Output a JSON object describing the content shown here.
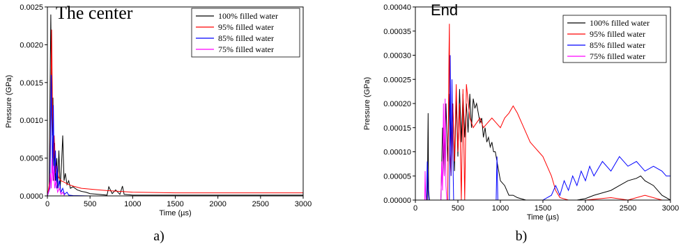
{
  "chart_data": [
    {
      "type": "line",
      "title": "The center",
      "caption": "a)",
      "xlabel": "Time (µs)",
      "ylabel": "Pressure (GPa)",
      "xlim": [
        0,
        3000
      ],
      "ylim": [
        0,
        0.0025
      ],
      "xticks": [
        "0",
        "500",
        "1000",
        "1500",
        "2000",
        "2500",
        "3000"
      ],
      "yticks": [
        "0.0000",
        "0.0005",
        "0.0010",
        "0.0015",
        "0.0020",
        "0.0025"
      ],
      "legend_position": "top-right",
      "series": [
        {
          "name": "100% filled water",
          "color": "#000000",
          "x": [
            0,
            20,
            40,
            55,
            65,
            75,
            85,
            95,
            110,
            120,
            135,
            150,
            165,
            180,
            195,
            210,
            230,
            250,
            270,
            300,
            350,
            400,
            450,
            500,
            600,
            700,
            720,
            760,
            800,
            850,
            880,
            900,
            1000,
            1500,
            2000,
            2500,
            3000
          ],
          "y": [
            0,
            0.0001,
            0.0024,
            0.0008,
            0.0013,
            0.0002,
            0.0007,
            0.0002,
            0.0005,
            0.0001,
            0.0006,
            0.0001,
            0.0004,
            0.0008,
            0.0002,
            0.0003,
            0.00015,
            0.0002,
            0.0001,
            0.00012,
            8e-05,
            6e-05,
            5e-05,
            3e-05,
            2e-05,
            1e-05,
            0.00012,
            3e-05,
            8e-05,
            2e-05,
            0.00013,
            2e-05,
            1e-05,
            1e-05,
            1e-05,
            1e-05,
            1e-05
          ]
        },
        {
          "name": "95% filled water",
          "color": "#ff0000",
          "x": [
            0,
            30,
            50,
            60,
            70,
            80,
            95,
            110,
            130,
            160,
            200,
            250,
            300,
            400,
            500,
            700,
            1000,
            1500,
            2000,
            2500,
            3000
          ],
          "y": [
            0,
            0.0002,
            0.0022,
            0.0012,
            0.0005,
            0.0008,
            0.0003,
            0.0004,
            0.00025,
            0.0002,
            0.00018,
            0.00015,
            0.00013,
            0.0001,
            9e-05,
            7e-05,
            5e-05,
            4e-05,
            4e-05,
            4e-05,
            4e-05
          ]
        },
        {
          "name": "85% filled water",
          "color": "#0000ff",
          "x": [
            0,
            30,
            45,
            60,
            70,
            80,
            95,
            105,
            115,
            125,
            140,
            160,
            180,
            200,
            230,
            250,
            300,
            400,
            500,
            1000,
            1500,
            2000,
            2500,
            3000
          ],
          "y": [
            0,
            0.0001,
            0.0016,
            0.0003,
            0.0012,
            0.0002,
            0.0006,
            0.0001,
            0.0004,
            0.0001,
            0.0002,
            5e-05,
            0.0001,
            2e-05,
            5e-05,
            1e-05,
            5e-06,
            3e-06,
            0,
            0,
            0,
            0,
            0,
            0
          ]
        },
        {
          "name": "75% filled water",
          "color": "#ff00ff",
          "x": [
            0,
            25,
            35,
            45,
            55,
            65,
            75,
            85,
            100,
            120,
            140,
            160,
            180,
            200,
            300,
            500,
            1000,
            2000,
            3000
          ],
          "y": [
            0,
            0.0001,
            0.0003,
            0.0001,
            0.0005,
            0.0002,
            0.0004,
            0.0001,
            0.0002,
            5e-05,
            0.0001,
            2e-05,
            5e-05,
            0,
            0,
            0,
            0,
            0,
            0
          ]
        }
      ]
    },
    {
      "type": "line",
      "title": "End",
      "caption": "b)",
      "xlabel": "Time (µs)",
      "ylabel": "Pressure (GPa)",
      "xlim": [
        0,
        3000
      ],
      "ylim": [
        0,
        0.0004
      ],
      "xticks": [
        "0",
        "500",
        "1000",
        "1500",
        "2000",
        "2500",
        "3000"
      ],
      "yticks": [
        "0.00000",
        "0.00005",
        "0.00010",
        "0.00015",
        "0.00020",
        "0.00025",
        "0.00030",
        "0.00035",
        "0.00040"
      ],
      "legend_position": "top-right",
      "series": [
        {
          "name": "100% filled water",
          "color": "#000000",
          "x": [
            0,
            140,
            150,
            155,
            165,
            300,
            320,
            340,
            360,
            380,
            400,
            420,
            440,
            460,
            480,
            500,
            520,
            540,
            560,
            580,
            600,
            620,
            640,
            660,
            680,
            700,
            720,
            740,
            760,
            780,
            800,
            820,
            840,
            860,
            880,
            900,
            920,
            940,
            960,
            980,
            1000,
            1050,
            1100,
            1150,
            1200,
            1300,
            1400,
            1500,
            1600,
            1700,
            1800,
            1900,
            2000,
            2100,
            2200,
            2300,
            2400,
            2500,
            2600,
            2650,
            2700,
            2800,
            2900,
            3000
          ],
          "y": [
            0,
            0,
            0.00018,
            2e-05,
            0,
            0,
            0.00015,
            5e-05,
            0.0002,
            8e-05,
            0.00022,
            0.0001,
            0.0002,
            6e-05,
            0.00021,
            9e-05,
            0.00023,
            0.00012,
            0.00022,
            0.00013,
            0.0002,
            0.00014,
            0.00022,
            0.00015,
            0.00021,
            0.00019,
            0.0002,
            0.00018,
            0.00016,
            0.00017,
            0.00013,
            0.00015,
            0.00012,
            0.00013,
            0.00011,
            0.00012,
            0.0001,
            0.0001,
            8e-05,
            6e-05,
            4e-05,
            3e-05,
            1e-05,
            1e-05,
            5e-06,
            0,
            0,
            0,
            0,
            0,
            0,
            0,
            3e-06,
            1e-05,
            1.5e-05,
            2e-05,
            3e-05,
            4e-05,
            4.5e-05,
            5e-05,
            4e-05,
            3e-05,
            1e-05,
            0
          ]
        },
        {
          "name": "95% filled water",
          "color": "#ff0000",
          "x": [
            0,
            380,
            390,
            395,
            400,
            405,
            420,
            440,
            460,
            480,
            500,
            520,
            540,
            560,
            580,
            600,
            640,
            680,
            720,
            760,
            800,
            850,
            900,
            950,
            1000,
            1050,
            1100,
            1150,
            1200,
            1250,
            1300,
            1350,
            1400,
            1450,
            1500,
            1550,
            1600,
            1650,
            1700,
            1800,
            2000,
            2300,
            2500,
            2700,
            2900,
            3000
          ],
          "y": [
            0,
            0,
            0.0002,
            0.0003,
            0.000365,
            0.0001,
            5e-05,
            0.0002,
            8e-05,
            0.00024,
            0.0001,
            0.0002,
            0.0,
            0.00023,
            0.0,
            0.00024,
            0.00017,
            0.00015,
            0.00016,
            0.00017,
            0.00015,
            0.00016,
            0.00017,
            0.00016,
            0.00015,
            0.00017,
            0.00018,
            0.000195,
            0.00018,
            0.00016,
            0.00014,
            0.00012,
            0.00011,
            0.0001,
            9e-05,
            7e-05,
            5e-05,
            2e-05,
            5e-06,
            0,
            0,
            5e-06,
            0,
            1e-05,
            0,
            0
          ]
        },
        {
          "name": "85% filled water",
          "color": "#0000ff",
          "x": [
            0,
            130,
            140,
            150,
            160,
            400,
            410,
            420,
            430,
            440,
            450,
            950,
            960,
            970,
            1500,
            1600,
            1650,
            1700,
            1750,
            1800,
            1850,
            1900,
            1950,
            2000,
            2050,
            2100,
            2200,
            2300,
            2400,
            2500,
            2600,
            2700,
            2800,
            2900,
            2950,
            3000
          ],
          "y": [
            0,
            0,
            8e-05,
            2e-05,
            0,
            0,
            0.0003,
            5e-05,
            0.00025,
            0.0001,
            0,
            0,
            9e-05,
            0,
            0,
            1e-05,
            3e-05,
            1e-05,
            4e-05,
            2e-05,
            5e-05,
            3e-05,
            6e-05,
            4e-05,
            7e-05,
            5e-05,
            8e-05,
            6e-05,
            9e-05,
            7e-05,
            8e-05,
            6e-05,
            7e-05,
            6e-05,
            5e-05,
            5e-05
          ]
        },
        {
          "name": "75% filled water",
          "color": "#ff00ff",
          "x": [
            0,
            110,
            115,
            120,
            125,
            300,
            310,
            320,
            330,
            340,
            350,
            360,
            370,
            3000
          ],
          "y": [
            0,
            0,
            6e-05,
            2e-05,
            0,
            0,
            8e-05,
            2e-05,
            0.0002,
            5e-05,
            0.00021,
            3e-05,
            0,
            0
          ]
        }
      ]
    }
  ]
}
